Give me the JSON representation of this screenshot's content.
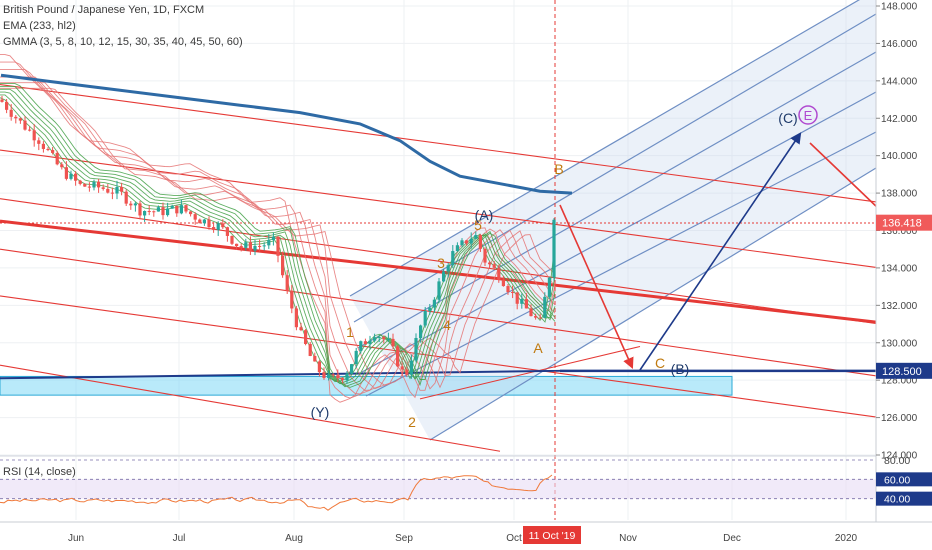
{
  "header": {
    "title": "British Pound / Japanese Yen, 1D, FXCM",
    "ema": "EMA (233, hl2)",
    "gmma": "GMMA (3, 5, 8, 10, 12, 15, 30, 35, 40, 45, 50, 60)"
  },
  "rsi_title": "RSI (14, close)",
  "colors": {
    "up": "#26a69a",
    "down": "#ef5350",
    "ema": "#2e6aa5",
    "wave": "#c07a10",
    "wave_dark": "#1e3a6a",
    "pitchfork_top": "#e53935",
    "pitchfork_blue": "#6f8fc4",
    "zone": "#7fd8f5",
    "crosshair": "#e53935",
    "rsi_line": "#f07a3c",
    "rsi_fill": "#e8dcf5",
    "price_label": "#f05a5a",
    "level_label": "#1e3a8a"
  },
  "chart_data": {
    "type": "candlestick",
    "symbol": "GBPJPY",
    "timeframe": "1D",
    "ylim": [
      124,
      148
    ],
    "y_ticks": [
      "124.000",
      "126.000",
      "128.000",
      "130.000",
      "132.000",
      "134.000",
      "136.000",
      "138.000",
      "140.000",
      "142.000",
      "144.000",
      "146.000",
      "148.000"
    ],
    "x_ticks": [
      "Jun",
      "Jul",
      "Aug",
      "Sep",
      "Oct",
      "Nov",
      "Dec",
      "2020"
    ],
    "current_price": "136.418",
    "support_level": "128.500",
    "cursor_date": "11 Oct '19",
    "rsi_levels": [
      "80.00",
      "60.00",
      "40.00"
    ],
    "wave_labels": {
      "y": "(Y)",
      "w1": "1",
      "w2": "2",
      "w3": "3",
      "w4": "4",
      "w5": "5",
      "wA": "(A)",
      "wB": "B",
      "wAlow": "A",
      "wC": "C",
      "wBlow": "(B)",
      "wCtarget": "(C)",
      "wE": "E"
    },
    "ema_233": [
      [
        1,
        144.3
      ],
      [
        60,
        143.9
      ],
      [
        120,
        143.5
      ],
      [
        180,
        143.1
      ],
      [
        240,
        142.7
      ],
      [
        300,
        142.3
      ],
      [
        360,
        141.7
      ],
      [
        400,
        140.8
      ],
      [
        430,
        139.7
      ],
      [
        460,
        138.9
      ],
      [
        500,
        138.5
      ],
      [
        540,
        138.1
      ],
      [
        572,
        138.0
      ]
    ],
    "pitchfork_red_lines": [
      [
        [
          0,
          143.8
        ],
        [
          880,
          137.5
        ]
      ],
      [
        [
          0,
          140.3
        ],
        [
          880,
          134.0
        ]
      ],
      [
        [
          0,
          137.7
        ],
        [
          880,
          131.0
        ]
      ],
      [
        [
          0,
          135.0
        ],
        [
          880,
          128.2
        ]
      ],
      [
        [
          0,
          132.5
        ],
        [
          880,
          126.0
        ]
      ]
    ]
  }
}
